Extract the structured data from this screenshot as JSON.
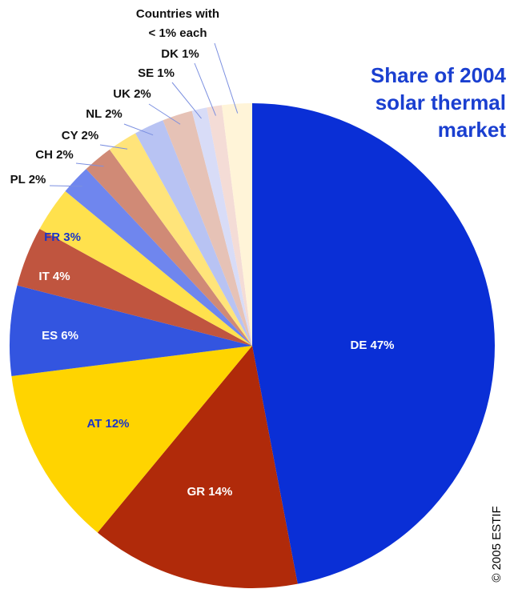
{
  "chart_data": {
    "type": "pie",
    "title_lines": [
      "Share of 2004",
      "solar thermal",
      "market"
    ],
    "credit": "© 2005 ESTIF",
    "values": [
      47,
      14,
      12,
      6,
      4,
      3,
      2,
      2,
      2,
      2,
      2,
      1,
      1,
      2
    ],
    "value_labels": [
      "DE 47%",
      "GR 14%",
      "AT 12%",
      "ES 6%",
      "IT 4%",
      "FR 3%",
      "PL 2%",
      "CH 2%",
      "CY 2%",
      "NL 2%",
      "UK 2%",
      "SE 1%",
      "DK 1%",
      [
        "Countries with",
        "< 1% each"
      ]
    ],
    "colors": [
      "#0a2fd6",
      "#b02a0a",
      "#ffd400",
      "#3355e0",
      "#c0553f",
      "#ffe14d",
      "#6f86ee",
      "#d08a76",
      "#ffe47a",
      "#b8c3f3",
      "#e6c2b6",
      "#d8dcf7",
      "#f4dcd6",
      "#fff4d8"
    ],
    "label_colors": [
      "#ffffff",
      "#ffffff",
      "#1a35c8",
      "#ffffff",
      "#ffffff",
      "#1a35c8",
      "#111111",
      "#111111",
      "#111111",
      "#111111",
      "#111111",
      "#111111",
      "#111111",
      "#111111"
    ]
  }
}
